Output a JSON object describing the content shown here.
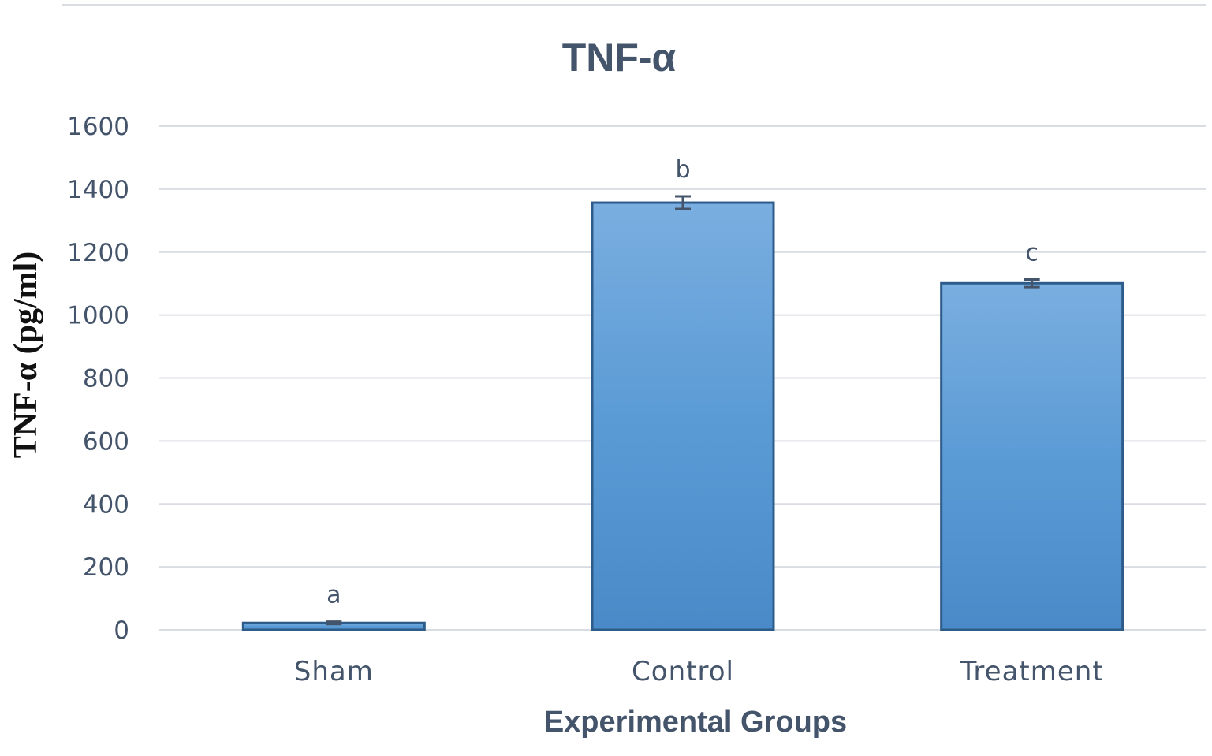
{
  "chart_data": {
    "type": "bar",
    "title": "TNF-α",
    "xlabel": "Experimental Groups",
    "ylabel": "TNF-α (pg/ml)",
    "categories": [
      "Sham",
      "Control",
      "Treatment"
    ],
    "values": [
      22,
      1357,
      1101
    ],
    "error": [
      4,
      20,
      12
    ],
    "significance_labels": [
      "a",
      "b",
      "c"
    ],
    "ylim": [
      0,
      1600
    ],
    "yticks": [
      0,
      200,
      400,
      600,
      800,
      1000,
      1200,
      1400,
      1600
    ],
    "grid": true,
    "bar_color": "#5b9bd5",
    "bar_edge_color": "#2e5c8a",
    "text_color": "#44546a"
  }
}
